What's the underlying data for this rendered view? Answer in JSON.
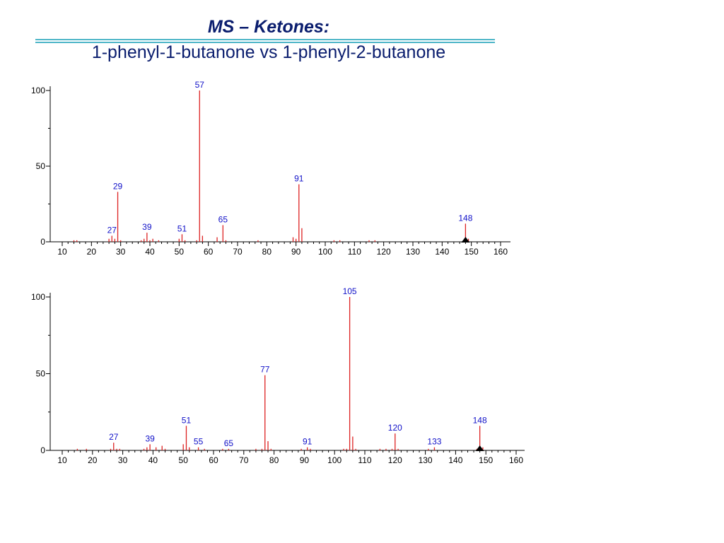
{
  "slide": {
    "title": "MS – Ketones:",
    "subtitle": "1-phenyl-1-butanone vs 1-phenyl-2-butanone",
    "accent_color": "#4fb6c8",
    "title_color": "#0a1d6e",
    "peak_color": "#dd2222",
    "label_color": "#1010c8"
  },
  "chart_data": [
    {
      "type": "bar",
      "xlim": [
        10,
        160
      ],
      "ylim": [
        0,
        100
      ],
      "x_ticks": [
        10,
        20,
        30,
        40,
        50,
        60,
        70,
        80,
        90,
        100,
        110,
        120,
        130,
        140,
        150,
        160
      ],
      "y_ticks": [
        0,
        50,
        100
      ],
      "peaks": [
        {
          "x": 14,
          "y": 1
        },
        {
          "x": 15,
          "y": 1
        },
        {
          "x": 26,
          "y": 2
        },
        {
          "x": 27,
          "y": 4
        },
        {
          "x": 28,
          "y": 2
        },
        {
          "x": 29,
          "y": 33
        },
        {
          "x": 30,
          "y": 1
        },
        {
          "x": 37,
          "y": 1
        },
        {
          "x": 38,
          "y": 2
        },
        {
          "x": 39,
          "y": 6
        },
        {
          "x": 40,
          "y": 1
        },
        {
          "x": 41,
          "y": 2
        },
        {
          "x": 43,
          "y": 1
        },
        {
          "x": 50,
          "y": 2
        },
        {
          "x": 51,
          "y": 5
        },
        {
          "x": 52,
          "y": 1
        },
        {
          "x": 56,
          "y": 1
        },
        {
          "x": 57,
          "y": 100
        },
        {
          "x": 58,
          "y": 4
        },
        {
          "x": 63,
          "y": 3
        },
        {
          "x": 65,
          "y": 11
        },
        {
          "x": 66,
          "y": 1
        },
        {
          "x": 77,
          "y": 1
        },
        {
          "x": 89,
          "y": 3
        },
        {
          "x": 90,
          "y": 2
        },
        {
          "x": 91,
          "y": 38
        },
        {
          "x": 92,
          "y": 9
        },
        {
          "x": 103,
          "y": 1
        },
        {
          "x": 105,
          "y": 1
        },
        {
          "x": 115,
          "y": 1
        },
        {
          "x": 117,
          "y": 1
        },
        {
          "x": 148,
          "y": 12
        },
        {
          "x": 149,
          "y": 2
        }
      ],
      "labels": [
        {
          "x": 27,
          "text": "27"
        },
        {
          "x": 29,
          "text": "29"
        },
        {
          "x": 39,
          "text": "39"
        },
        {
          "x": 51,
          "text": "51"
        },
        {
          "x": 57,
          "text": "57"
        },
        {
          "x": 65,
          "text": "65"
        },
        {
          "x": 91,
          "text": "91"
        },
        {
          "x": 148,
          "text": "148"
        }
      ],
      "marker_x": 148
    },
    {
      "type": "bar",
      "xlim": [
        10,
        160
      ],
      "ylim": [
        0,
        100
      ],
      "x_ticks": [
        10,
        20,
        30,
        40,
        50,
        60,
        70,
        80,
        90,
        100,
        110,
        120,
        130,
        140,
        150,
        160
      ],
      "y_ticks": [
        0,
        50,
        100
      ],
      "peaks": [
        {
          "x": 15,
          "y": 1
        },
        {
          "x": 18,
          "y": 1
        },
        {
          "x": 26,
          "y": 1
        },
        {
          "x": 27,
          "y": 5
        },
        {
          "x": 28,
          "y": 1
        },
        {
          "x": 29,
          "y": 1
        },
        {
          "x": 37,
          "y": 1
        },
        {
          "x": 38,
          "y": 2
        },
        {
          "x": 39,
          "y": 4
        },
        {
          "x": 41,
          "y": 2
        },
        {
          "x": 43,
          "y": 3
        },
        {
          "x": 44,
          "y": 1
        },
        {
          "x": 50,
          "y": 4
        },
        {
          "x": 51,
          "y": 16
        },
        {
          "x": 52,
          "y": 2
        },
        {
          "x": 55,
          "y": 2
        },
        {
          "x": 57,
          "y": 1
        },
        {
          "x": 63,
          "y": 1
        },
        {
          "x": 65,
          "y": 1
        },
        {
          "x": 74,
          "y": 1
        },
        {
          "x": 76,
          "y": 1
        },
        {
          "x": 77,
          "y": 49
        },
        {
          "x": 78,
          "y": 6
        },
        {
          "x": 79,
          "y": 1
        },
        {
          "x": 89,
          "y": 1
        },
        {
          "x": 91,
          "y": 2
        },
        {
          "x": 92,
          "y": 1
        },
        {
          "x": 103,
          "y": 1
        },
        {
          "x": 104,
          "y": 1
        },
        {
          "x": 105,
          "y": 100
        },
        {
          "x": 106,
          "y": 9
        },
        {
          "x": 107,
          "y": 1
        },
        {
          "x": 115,
          "y": 1
        },
        {
          "x": 117,
          "y": 1
        },
        {
          "x": 119,
          "y": 1
        },
        {
          "x": 120,
          "y": 11
        },
        {
          "x": 121,
          "y": 1
        },
        {
          "x": 131,
          "y": 1
        },
        {
          "x": 133,
          "y": 2
        },
        {
          "x": 147,
          "y": 1
        },
        {
          "x": 148,
          "y": 16
        },
        {
          "x": 149,
          "y": 2
        }
      ],
      "labels": [
        {
          "x": 27,
          "text": "27"
        },
        {
          "x": 39,
          "text": "39"
        },
        {
          "x": 51,
          "text": "51"
        },
        {
          "x": 55,
          "text": "55"
        },
        {
          "x": 65,
          "text": "65"
        },
        {
          "x": 77,
          "text": "77"
        },
        {
          "x": 91,
          "text": "91"
        },
        {
          "x": 105,
          "text": "105"
        },
        {
          "x": 120,
          "text": "120"
        },
        {
          "x": 133,
          "text": "133"
        },
        {
          "x": 148,
          "text": "148"
        }
      ],
      "marker_x": 148
    }
  ]
}
